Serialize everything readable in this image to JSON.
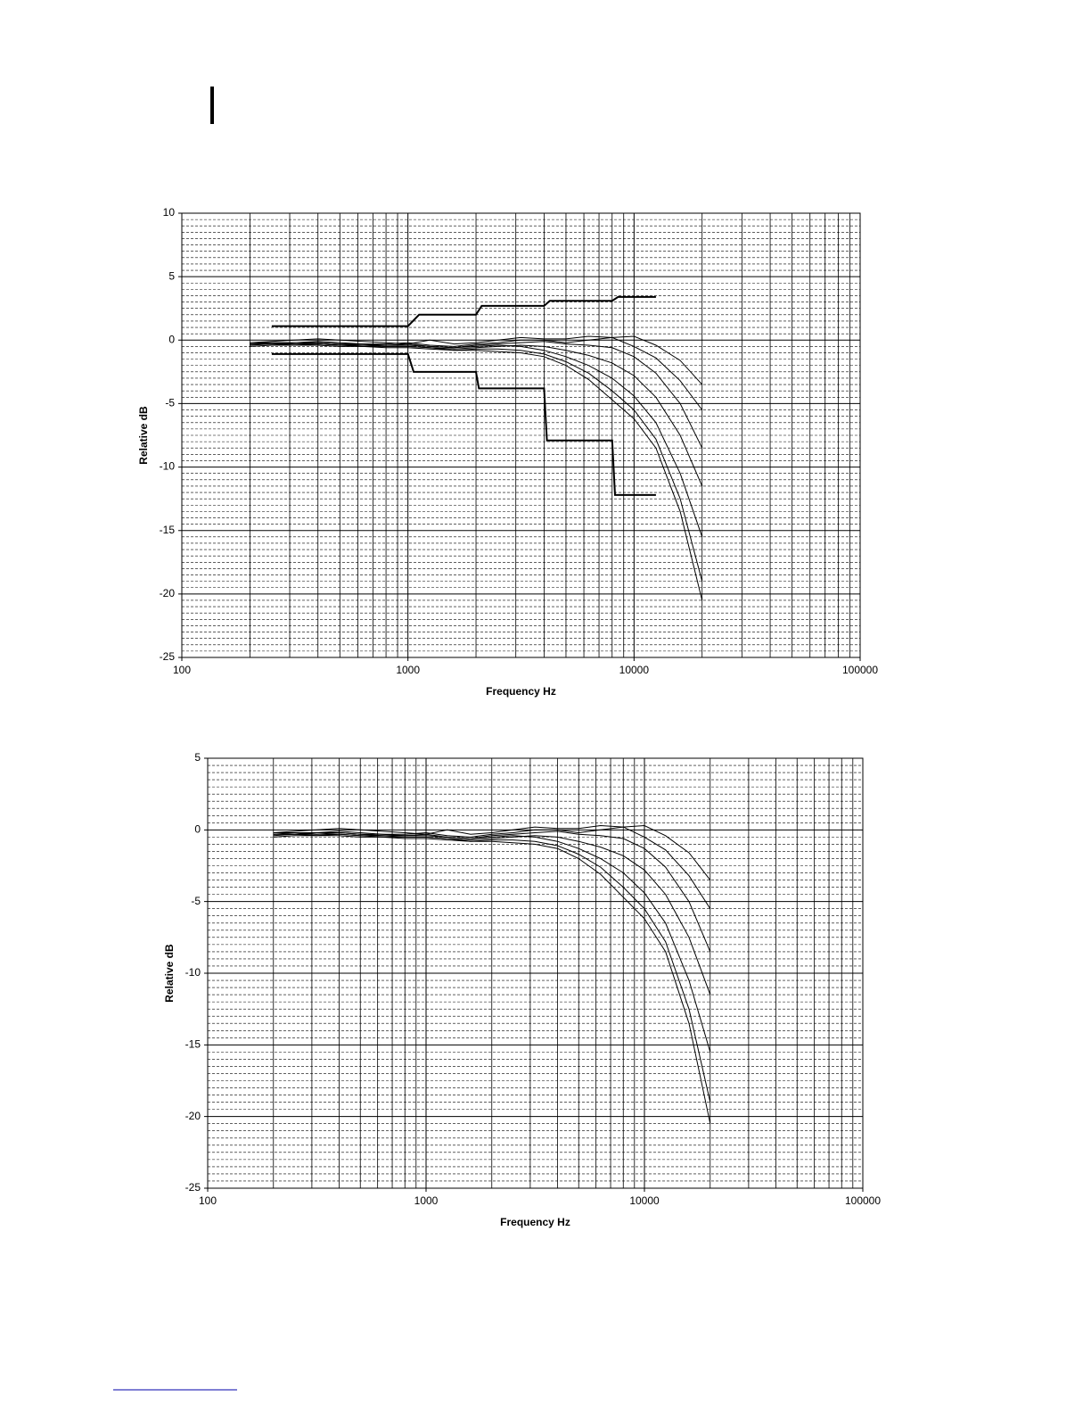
{
  "chart_data": [
    {
      "type": "line",
      "y_label": "Relative dB",
      "x_label": "Frequency Hz",
      "log_x": true,
      "grid": true,
      "minor_grid": true,
      "xlim": [
        100,
        100000
      ],
      "xticks": [
        100,
        1000,
        10000,
        100000
      ],
      "ylim": [
        -25,
        10
      ],
      "yticks": [
        -25,
        -20,
        -15,
        -10,
        -5,
        0,
        5,
        10
      ],
      "x": [
        200,
        250,
        315,
        400,
        500,
        630,
        800,
        1000,
        1250,
        1600,
        2000,
        2500,
        3150,
        4000,
        5000,
        6300,
        8000,
        10000,
        12500,
        16000,
        20000
      ],
      "series": [
        {
          "color": "#000000",
          "values": [
            -0.2,
            -0.1,
            0,
            0.1,
            0,
            -0.1,
            -0.2,
            -0.3,
            0,
            -0.3,
            -0.2,
            0,
            0.2,
            0.1,
            0.1,
            0.3,
            0.2,
            0.3,
            -0.4,
            -1.6,
            -3.5
          ]
        },
        {
          "color": "#000000",
          "values": [
            -0.3,
            -0.2,
            -0.2,
            -0.1,
            -0.2,
            -0.3,
            -0.3,
            -0.2,
            -0.4,
            -0.5,
            -0.3,
            -0.2,
            0,
            0,
            -0.2,
            0,
            0.2,
            -0.5,
            -1.4,
            -3.2,
            -5.5
          ]
        },
        {
          "color": "#000000",
          "values": [
            -0.3,
            -0.3,
            -0.2,
            -0.2,
            -0.3,
            -0.3,
            -0.4,
            -0.4,
            -0.5,
            -0.6,
            -0.4,
            -0.3,
            -0.2,
            -0.1,
            -0.3,
            -0.4,
            -0.6,
            -1.3,
            -2.6,
            -5,
            -8.5
          ]
        },
        {
          "color": "#000000",
          "values": [
            -0.4,
            -0.3,
            -0.3,
            -0.3,
            -0.4,
            -0.4,
            -0.5,
            -0.5,
            -0.6,
            -0.7,
            -0.6,
            -0.5,
            -0.4,
            -0.5,
            -0.8,
            -1.2,
            -1.8,
            -2.8,
            -4.5,
            -7.5,
            -11.5
          ]
        },
        {
          "color": "#000000",
          "values": [
            -0.2,
            -0.2,
            -0.3,
            -0.2,
            -0.3,
            -0.4,
            -0.4,
            -0.3,
            -0.5,
            -0.6,
            -0.5,
            -0.4,
            -0.5,
            -0.8,
            -1.3,
            -2,
            -3,
            -4.4,
            -6.5,
            -10.5,
            -15.5
          ]
        },
        {
          "color": "#000000",
          "values": [
            -0.5,
            -0.4,
            -0.4,
            -0.4,
            -0.5,
            -0.5,
            -0.6,
            -0.6,
            -0.7,
            -0.8,
            -0.7,
            -0.7,
            -0.8,
            -1.1,
            -1.7,
            -2.6,
            -4,
            -5.5,
            -7.8,
            -12.5,
            -19
          ]
        },
        {
          "color": "#000000",
          "values": [
            -0.3,
            -0.3,
            -0.4,
            -0.3,
            -0.4,
            -0.5,
            -0.5,
            -0.5,
            -0.6,
            -0.8,
            -0.8,
            -0.9,
            -1,
            -1.3,
            -2,
            -3.1,
            -4.7,
            -6.2,
            -8.5,
            -13.5,
            -20.5
          ]
        },
        {
          "color": "#000000",
          "width": 2,
          "x": [
            250,
            1000,
            1120,
            2000,
            2120,
            4000,
            4240,
            8000,
            8500,
            12500
          ],
          "values": [
            1.1,
            1.1,
            2.0,
            2.0,
            2.7,
            2.7,
            3.1,
            3.1,
            3.4,
            3.4
          ]
        },
        {
          "color": "#000000",
          "width": 2,
          "x": [
            250,
            1000,
            1060,
            2000,
            2060,
            4000,
            4120,
            8000,
            8240,
            12500
          ],
          "values": [
            -1.1,
            -1.1,
            -2.5,
            -2.5,
            -3.8,
            -3.8,
            -7.9,
            -7.9,
            -12.2,
            -12.2
          ]
        }
      ]
    },
    {
      "type": "line",
      "y_label": "Relative dB",
      "x_label": "Frequency Hz",
      "log_x": true,
      "grid": true,
      "minor_grid": true,
      "xlim": [
        100,
        100000
      ],
      "xticks": [
        100,
        1000,
        10000,
        100000
      ],
      "ylim": [
        -25,
        5
      ],
      "yticks": [
        -25,
        -20,
        -15,
        -10,
        -5,
        0,
        5
      ],
      "x": [
        200,
        250,
        315,
        400,
        500,
        630,
        800,
        1000,
        1250,
        1600,
        2000,
        2500,
        3150,
        4000,
        5000,
        6300,
        8000,
        10000,
        12500,
        16000,
        20000
      ],
      "series": [
        {
          "color": "#000000",
          "values": [
            -0.2,
            -0.1,
            0,
            0.1,
            0,
            -0.1,
            -0.2,
            -0.3,
            0,
            -0.3,
            -0.2,
            0,
            0.2,
            0.1,
            0.1,
            0.3,
            0.2,
            0.3,
            -0.4,
            -1.6,
            -3.5
          ]
        },
        {
          "color": "#000000",
          "values": [
            -0.3,
            -0.2,
            -0.2,
            -0.1,
            -0.2,
            -0.3,
            -0.3,
            -0.2,
            -0.4,
            -0.5,
            -0.3,
            -0.2,
            0,
            0,
            -0.2,
            0,
            0.2,
            -0.5,
            -1.4,
            -3.2,
            -5.5
          ]
        },
        {
          "color": "#000000",
          "values": [
            -0.3,
            -0.3,
            -0.2,
            -0.2,
            -0.3,
            -0.3,
            -0.4,
            -0.4,
            -0.5,
            -0.6,
            -0.4,
            -0.3,
            -0.2,
            -0.1,
            -0.3,
            -0.4,
            -0.6,
            -1.3,
            -2.6,
            -5,
            -8.5
          ]
        },
        {
          "color": "#000000",
          "values": [
            -0.4,
            -0.3,
            -0.3,
            -0.3,
            -0.4,
            -0.4,
            -0.5,
            -0.5,
            -0.6,
            -0.7,
            -0.6,
            -0.5,
            -0.4,
            -0.5,
            -0.8,
            -1.2,
            -1.8,
            -2.8,
            -4.5,
            -7.5,
            -11.5
          ]
        },
        {
          "color": "#000000",
          "values": [
            -0.2,
            -0.2,
            -0.3,
            -0.2,
            -0.3,
            -0.4,
            -0.4,
            -0.3,
            -0.5,
            -0.6,
            -0.5,
            -0.4,
            -0.5,
            -0.8,
            -1.3,
            -2,
            -3,
            -4.4,
            -6.5,
            -10.5,
            -15.5
          ]
        },
        {
          "color": "#000000",
          "values": [
            -0.5,
            -0.4,
            -0.4,
            -0.4,
            -0.5,
            -0.5,
            -0.6,
            -0.6,
            -0.7,
            -0.8,
            -0.7,
            -0.7,
            -0.8,
            -1.1,
            -1.7,
            -2.6,
            -4,
            -5.5,
            -7.8,
            -12.5,
            -19
          ]
        },
        {
          "color": "#000000",
          "values": [
            -0.3,
            -0.3,
            -0.4,
            -0.3,
            -0.4,
            -0.5,
            -0.5,
            -0.5,
            -0.6,
            -0.8,
            -0.8,
            -0.9,
            -1,
            -1.3,
            -2,
            -3.1,
            -4.7,
            -6.2,
            -8.5,
            -13.5,
            -20.5
          ]
        }
      ]
    }
  ]
}
